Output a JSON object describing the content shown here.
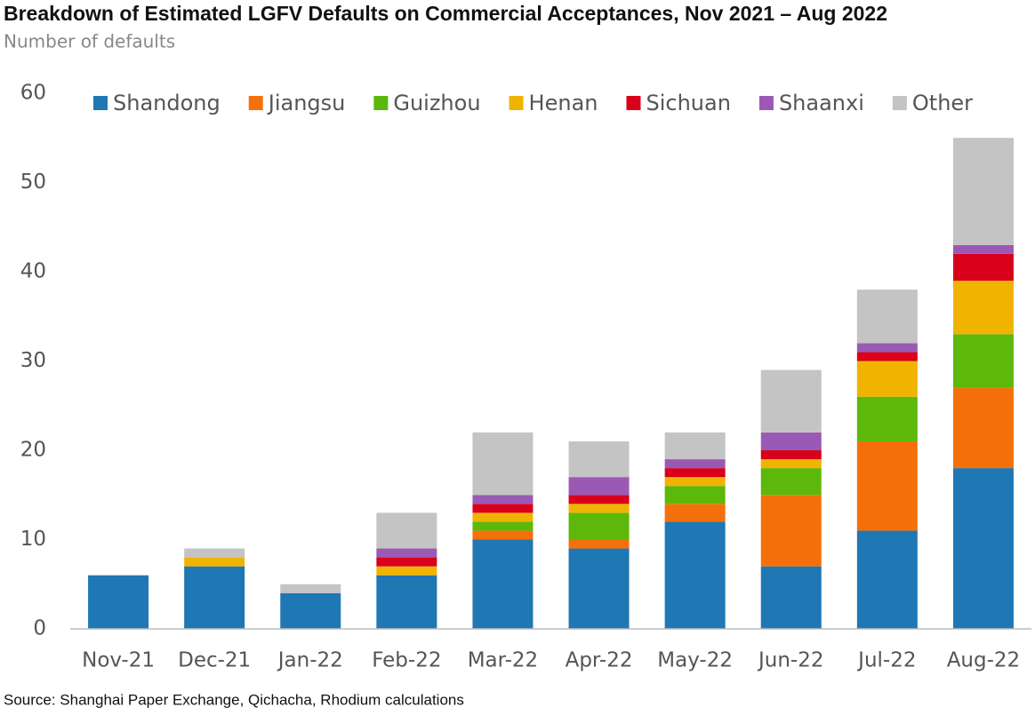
{
  "chart_data": {
    "type": "stacked_bar",
    "title": "Breakdown of Estimated LGFV Defaults on Commercial Acceptances, Nov 2021 – Aug 2022",
    "subtitle": "Number of defaults",
    "source": "Source: Shanghai Paper Exchange, Qichacha, Rhodium calculations",
    "categories": [
      "Nov-21",
      "Dec-21",
      "Jan-22",
      "Feb-22",
      "Mar-22",
      "Apr-22",
      "May-22",
      "Jun-22",
      "Jul-22",
      "Aug-22"
    ],
    "series": [
      {
        "name": "Shandong",
        "color": "#1f77b4",
        "values": [
          6,
          7,
          4,
          6,
          10,
          9,
          12,
          7,
          11,
          18
        ]
      },
      {
        "name": "Jiangsu",
        "color": "#f5700a",
        "values": [
          0,
          0,
          0,
          0,
          1,
          1,
          2,
          8,
          10,
          9
        ]
      },
      {
        "name": "Guizhou",
        "color": "#5cb80a",
        "values": [
          0,
          0,
          0,
          0,
          1,
          3,
          2,
          3,
          5,
          6
        ]
      },
      {
        "name": "Henan",
        "color": "#f0b400",
        "values": [
          0,
          1,
          0,
          1,
          1,
          1,
          1,
          1,
          4,
          6
        ]
      },
      {
        "name": "Sichuan",
        "color": "#d9001b",
        "values": [
          0,
          0,
          0,
          1,
          1,
          1,
          1,
          1,
          1,
          3
        ]
      },
      {
        "name": "Shaanxi",
        "color": "#9b59b6",
        "values": [
          0,
          0,
          0,
          1,
          1,
          2,
          1,
          2,
          1,
          1
        ]
      },
      {
        "name": "Other",
        "color": "#c4c4c4",
        "values": [
          0,
          1,
          1,
          4,
          7,
          4,
          3,
          7,
          6,
          12
        ]
      }
    ],
    "ylim": [
      0,
      60
    ],
    "yticks": [
      0,
      10,
      20,
      30,
      40,
      50,
      60
    ],
    "grid": false,
    "legend": "top"
  }
}
